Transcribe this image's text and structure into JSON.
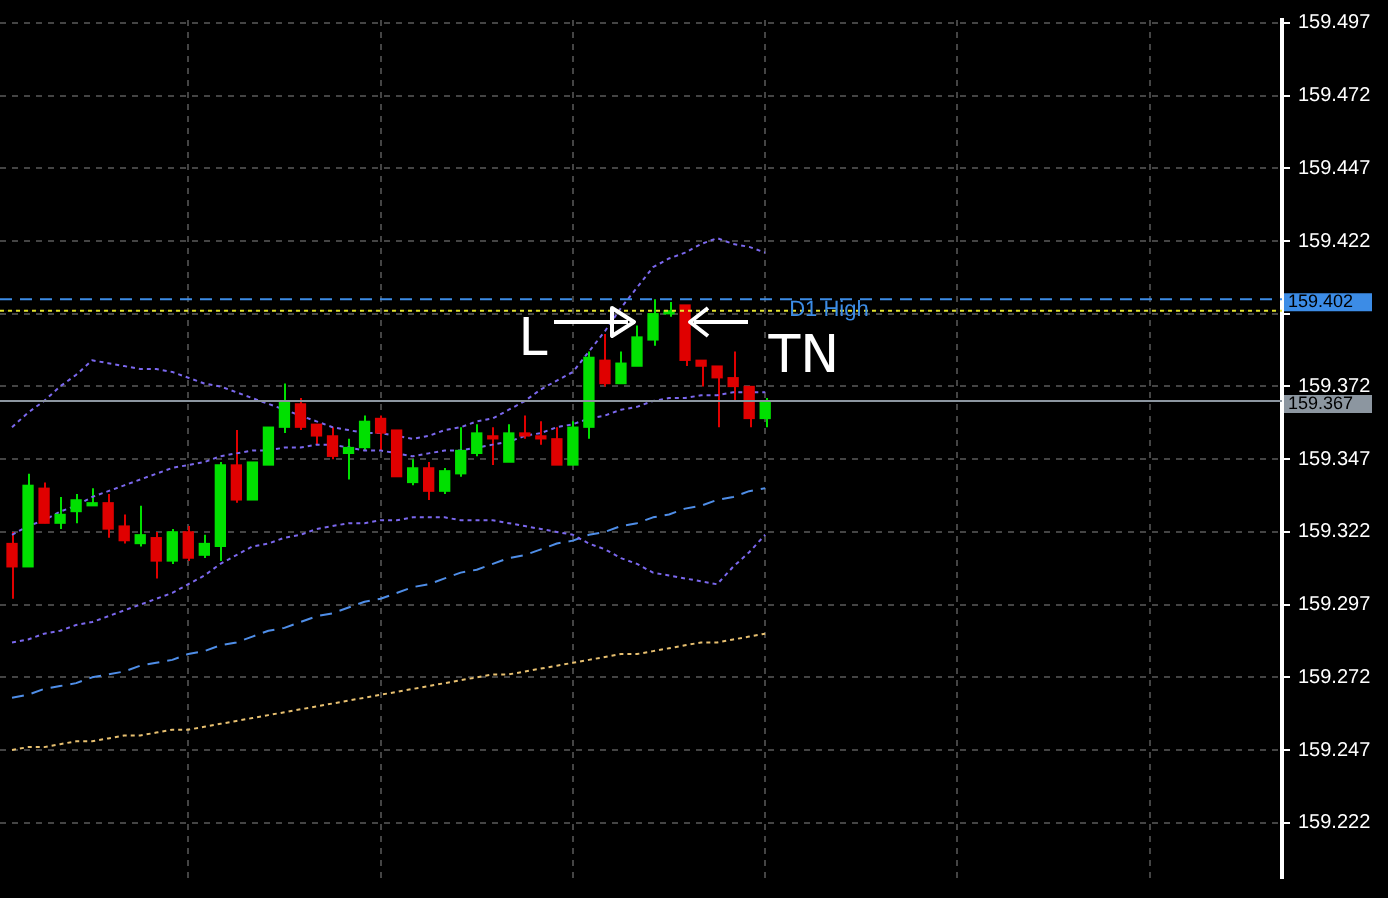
{
  "chart_data": {
    "type": "candlestick",
    "categories": [
      null,
      null,
      null,
      null,
      null,
      null,
      null,
      null,
      null,
      null,
      null,
      null,
      null,
      null,
      null,
      null,
      null,
      null,
      null,
      null,
      null,
      null,
      null,
      null,
      null,
      null,
      null,
      null,
      null,
      null,
      null,
      null,
      null,
      null,
      null,
      null,
      null,
      null,
      null,
      null,
      null,
      null,
      null,
      null,
      null,
      null,
      null,
      null
    ],
    "ohlc": [
      [
        159.318,
        159.322,
        159.299,
        159.31
      ],
      [
        159.31,
        159.342,
        159.31,
        159.338
      ],
      [
        159.337,
        159.339,
        159.325,
        159.325
      ],
      [
        159.325,
        159.334,
        159.323,
        159.328
      ],
      [
        159.329,
        159.335,
        159.325,
        159.333
      ],
      [
        159.331,
        159.337,
        159.331,
        159.332
      ],
      [
        159.332,
        159.335,
        159.32,
        159.323
      ],
      [
        159.324,
        159.328,
        159.318,
        159.319
      ],
      [
        159.318,
        159.331,
        159.317,
        159.321
      ],
      [
        159.32,
        159.322,
        159.306,
        159.312
      ],
      [
        159.312,
        159.323,
        159.311,
        159.322
      ],
      [
        159.322,
        159.324,
        159.312,
        159.313
      ],
      [
        159.314,
        159.321,
        159.313,
        159.318
      ],
      [
        159.317,
        159.346,
        159.312,
        159.345
      ],
      [
        159.345,
        159.357,
        159.332,
        159.333
      ],
      [
        159.333,
        159.346,
        159.333,
        159.346
      ],
      [
        159.345,
        159.358,
        159.345,
        159.358
      ],
      [
        159.358,
        159.373,
        159.356,
        159.367
      ],
      [
        159.366,
        159.368,
        159.357,
        159.358
      ],
      [
        159.359,
        159.359,
        159.352,
        159.355
      ],
      [
        159.355,
        159.358,
        159.347,
        159.348
      ],
      [
        159.349,
        159.354,
        159.34,
        159.351
      ],
      [
        159.351,
        159.362,
        159.35,
        159.36
      ],
      [
        159.361,
        159.362,
        159.35,
        159.356
      ],
      [
        159.357,
        159.357,
        159.341,
        159.341
      ],
      [
        159.339,
        159.347,
        159.338,
        159.344
      ],
      [
        159.344,
        159.346,
        159.333,
        159.336
      ],
      [
        159.336,
        159.344,
        159.335,
        159.343
      ],
      [
        159.342,
        159.358,
        159.341,
        159.35
      ],
      [
        159.349,
        159.359,
        159.348,
        159.356
      ],
      [
        159.355,
        159.358,
        159.345,
        159.354
      ],
      [
        159.346,
        159.359,
        159.346,
        159.356
      ],
      [
        159.356,
        159.362,
        159.354,
        159.355
      ],
      [
        159.355,
        159.36,
        159.352,
        159.354
      ],
      [
        159.354,
        159.358,
        159.345,
        159.345
      ],
      [
        159.345,
        159.36,
        159.345,
        159.358
      ],
      [
        159.358,
        159.384,
        159.354,
        159.382
      ],
      [
        159.381,
        159.39,
        159.372,
        159.373
      ],
      [
        159.373,
        159.384,
        159.373,
        159.38
      ],
      [
        159.379,
        159.393,
        159.379,
        159.389
      ],
      [
        159.388,
        159.402,
        159.386,
        159.397
      ],
      [
        159.397,
        159.401,
        159.396,
        159.398
      ],
      [
        159.4,
        159.4,
        159.379,
        159.381
      ],
      [
        159.381,
        159.381,
        159.372,
        159.379
      ],
      [
        159.379,
        159.379,
        159.358,
        159.375
      ],
      [
        159.375,
        159.384,
        159.367,
        159.372
      ],
      [
        159.372,
        159.372,
        159.358,
        159.361
      ],
      [
        159.361,
        159.368,
        159.358,
        159.367
      ]
    ],
    "colors": [
      "#e00000",
      "#00e000",
      "#e00000",
      "#00e000",
      "#00e000",
      "#00e000",
      "#e00000",
      "#e00000",
      "#00e000",
      "#e00000",
      "#00e000",
      "#e00000",
      "#00e000",
      "#00e000",
      "#e00000",
      "#00e000",
      "#00e000",
      "#00e000",
      "#e00000",
      "#e00000",
      "#e00000",
      "#00e000",
      "#00e000",
      "#e00000",
      "#e00000",
      "#00e000",
      "#e00000",
      "#00e000",
      "#00e000",
      "#00e000",
      "#e00000",
      "#00e000",
      "#e00000",
      "#e00000",
      "#e00000",
      "#00e000",
      "#00e000",
      "#e00000",
      "#00e000",
      "#00e000",
      "#00e000",
      "#00e000",
      "#e00000",
      "#e00000",
      "#e00000",
      "#e00000",
      "#e00000",
      "#00e000"
    ],
    "series": [
      {
        "type": "line",
        "color": "#7b68ee",
        "line_style": "dotted",
        "values": [
          159.358,
          159.363,
          159.367,
          159.372,
          159.376,
          159.381,
          159.38,
          159.379,
          159.378,
          159.378,
          159.377,
          159.375,
          159.373,
          159.372,
          159.37,
          159.368,
          159.366,
          159.364,
          159.362,
          159.36,
          159.358,
          159.357,
          159.356,
          159.356,
          159.355,
          159.354,
          159.355,
          159.357,
          159.358,
          159.36,
          159.361,
          159.364,
          159.367,
          159.371,
          159.374,
          159.377,
          159.384,
          159.391,
          159.399,
          159.406,
          159.413,
          159.416,
          159.418,
          159.421,
          159.423,
          159.421,
          159.42,
          159.418
        ]
      },
      {
        "type": "line",
        "color": "#7b68ee",
        "line_style": "dotted",
        "values": [
          159.321,
          159.324,
          159.326,
          159.329,
          159.331,
          159.334,
          159.336,
          159.338,
          159.34,
          159.342,
          159.344,
          159.345,
          159.346,
          159.348,
          159.349,
          159.35,
          159.35,
          159.351,
          159.351,
          159.352,
          159.352,
          159.351,
          159.35,
          159.35,
          159.349,
          159.348,
          159.349,
          159.35,
          159.35,
          159.351,
          159.352,
          159.353,
          159.355,
          159.356,
          159.358,
          159.359,
          159.361,
          159.362,
          159.364,
          159.365,
          159.367,
          159.368,
          159.368,
          159.369,
          159.369,
          159.37,
          159.37,
          159.37
        ]
      },
      {
        "type": "line",
        "color": "#7b68ee",
        "line_style": "dotted",
        "values": [
          159.284,
          159.285,
          159.287,
          159.288,
          159.29,
          159.291,
          159.293,
          159.295,
          159.297,
          159.299,
          159.301,
          159.304,
          159.307,
          159.311,
          159.314,
          159.317,
          159.318,
          159.32,
          159.321,
          159.323,
          159.324,
          159.325,
          159.325,
          159.326,
          159.326,
          159.327,
          159.327,
          159.327,
          159.326,
          159.326,
          159.326,
          159.325,
          159.324,
          159.323,
          159.322,
          159.321,
          159.318,
          159.316,
          159.313,
          159.311,
          159.308,
          159.307,
          159.306,
          159.305,
          159.304,
          159.31,
          159.315,
          159.321
        ]
      },
      {
        "type": "line",
        "color": "#4f8ee8",
        "line_style": "dashed",
        "values": [
          159.265,
          159.266,
          159.268,
          159.269,
          159.27,
          159.272,
          159.273,
          159.274,
          159.276,
          159.277,
          159.278,
          159.28,
          159.281,
          159.283,
          159.284,
          159.286,
          159.288,
          159.289,
          159.291,
          159.293,
          159.294,
          159.296,
          159.298,
          159.299,
          159.301,
          159.303,
          159.304,
          159.306,
          159.308,
          159.309,
          159.311,
          159.313,
          159.314,
          159.316,
          159.318,
          159.319,
          159.321,
          159.322,
          159.324,
          159.325,
          159.327,
          159.328,
          159.33,
          159.331,
          159.333,
          159.334,
          159.336,
          159.337
        ]
      },
      {
        "type": "line",
        "color": "#e8c070",
        "line_style": "dotted",
        "values": [
          159.247,
          159.248,
          159.248,
          159.249,
          159.25,
          159.25,
          159.251,
          159.252,
          159.252,
          159.253,
          159.254,
          159.254,
          159.255,
          159.256,
          159.257,
          159.258,
          159.259,
          159.26,
          159.261,
          159.262,
          159.263,
          159.264,
          159.265,
          159.266,
          159.267,
          159.268,
          159.269,
          159.27,
          159.271,
          159.272,
          159.273,
          159.273,
          159.274,
          159.275,
          159.276,
          159.277,
          159.278,
          159.279,
          159.28,
          159.28,
          159.281,
          159.282,
          159.283,
          159.284,
          159.284,
          159.285,
          159.286,
          159.287
        ]
      }
    ],
    "ylim": [
      159.203,
      159.498
    ],
    "yticks": [
      159.222,
      159.247,
      159.272,
      159.297,
      159.322,
      159.347,
      159.372,
      {
        "value": 159.397,
        "label": null
      },
      159.422,
      159.447,
      159.472,
      159.497
    ],
    "tick_labels": "y",
    "grid": true,
    "legend": false,
    "ref_lines": [
      {
        "axis": "y",
        "value": 159.402,
        "label": "159.402",
        "color": "#3c8ce6",
        "line_style": "dashed"
      },
      {
        "axis": "y",
        "value": 159.398,
        "color": "#e6e632",
        "line_style": "dotted"
      },
      {
        "axis": "y",
        "value": 159.367,
        "label": "159.367",
        "color": "#8c96a0",
        "line_style": "solid"
      }
    ],
    "annotations": [
      "L",
      "TN",
      {
        "text": "D1 High",
        "y": 159.402
      }
    ]
  }
}
